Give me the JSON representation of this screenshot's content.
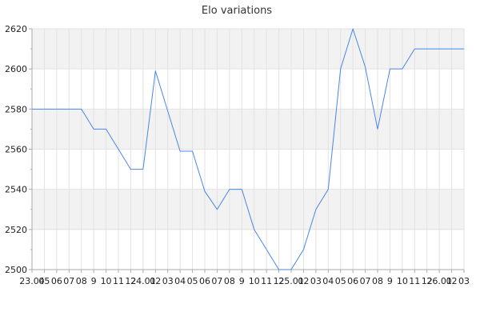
{
  "chart_data": {
    "type": "line",
    "title": "Elo variations",
    "xlabel": "",
    "ylabel": "",
    "ylim": [
      2500,
      2620
    ],
    "yticks": [
      2500,
      2520,
      2540,
      2560,
      2580,
      2600,
      2620
    ],
    "grid": true,
    "categories": [
      "23.04",
      "05",
      "06",
      "07",
      "08",
      "9",
      "10",
      "11",
      "12",
      "24.01",
      "02",
      "03",
      "04",
      "05",
      "06",
      "07",
      "08",
      "9",
      "10",
      "11",
      "12",
      "25.01",
      "02",
      "03",
      "04",
      "05",
      "06",
      "07",
      "08",
      "9",
      "10",
      "11",
      "12",
      "26.01",
      "02",
      "03"
    ],
    "values": [
      2580,
      2580,
      2580,
      2580,
      2580,
      2570,
      2570,
      2560,
      2550,
      2550,
      2599,
      2579,
      2559,
      2559,
      2539,
      2530,
      2540,
      2540,
      2520,
      2510,
      2500,
      2500,
      2510,
      2530,
      2540,
      2600,
      2620,
      2601,
      2570,
      2600,
      2600,
      2610,
      2610,
      2610,
      2610,
      2610
    ],
    "colors": {
      "line": "#4a86e8",
      "band": "#f2f2f2",
      "grid": "#e2e2e2",
      "axis": "#aaaaaa"
    }
  }
}
